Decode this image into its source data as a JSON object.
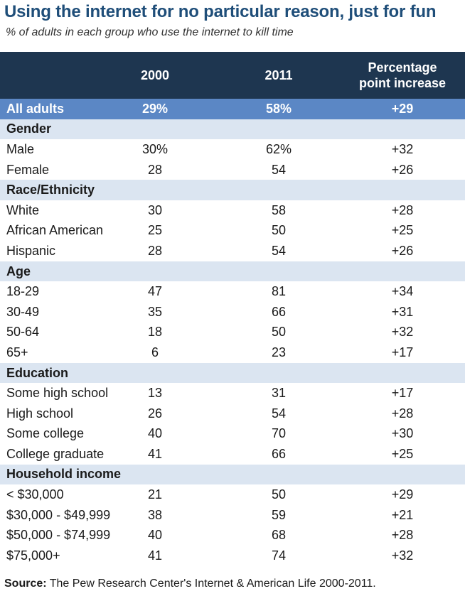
{
  "chart_data": {
    "type": "table",
    "title": "Using the internet for no particular reason, just for fun",
    "subtitle": "% of adults in each group who use the internet to kill time",
    "columns": [
      "",
      "2000",
      "2011",
      "Percentage point increase"
    ],
    "rows": [
      {
        "kind": "all",
        "label": "All adults",
        "v2000": "29%",
        "v2011": "58%",
        "increase": "+29"
      },
      {
        "kind": "group",
        "label": "Gender"
      },
      {
        "kind": "data",
        "label": "Male",
        "v2000": "30%",
        "v2011": "62%",
        "increase": "+32"
      },
      {
        "kind": "data",
        "label": "Female",
        "v2000": "28",
        "v2011": "54",
        "increase": "+26"
      },
      {
        "kind": "group",
        "label": "Race/Ethnicity"
      },
      {
        "kind": "data",
        "label": "White",
        "v2000": "30",
        "v2011": "58",
        "increase": "+28"
      },
      {
        "kind": "data",
        "label": "African American",
        "v2000": "25",
        "v2011": "50",
        "increase": "+25"
      },
      {
        "kind": "data",
        "label": "Hispanic",
        "v2000": "28",
        "v2011": "54",
        "increase": "+26"
      },
      {
        "kind": "group",
        "label": "Age"
      },
      {
        "kind": "data",
        "label": "18-29",
        "v2000": "47",
        "v2011": "81",
        "increase": "+34"
      },
      {
        "kind": "data",
        "label": "30-49",
        "v2000": "35",
        "v2011": "66",
        "increase": "+31"
      },
      {
        "kind": "data",
        "label": "50-64",
        "v2000": "18",
        "v2011": "50",
        "increase": "+32"
      },
      {
        "kind": "data",
        "label": "65+",
        "v2000": "6",
        "v2011": "23",
        "increase": "+17"
      },
      {
        "kind": "group",
        "label": "Education"
      },
      {
        "kind": "data",
        "label": "Some high school",
        "v2000": "13",
        "v2011": "31",
        "increase": "+17"
      },
      {
        "kind": "data",
        "label": "High school",
        "v2000": "26",
        "v2011": "54",
        "increase": "+28"
      },
      {
        "kind": "data",
        "label": "Some college",
        "v2000": "40",
        "v2011": "70",
        "increase": "+30"
      },
      {
        "kind": "data",
        "label": "College graduate",
        "v2000": "41",
        "v2011": "66",
        "increase": "+25"
      },
      {
        "kind": "group",
        "label": "Household income"
      },
      {
        "kind": "data",
        "label": "< $30,000",
        "v2000": "21",
        "v2011": "50",
        "increase": "+29"
      },
      {
        "kind": "data",
        "label": "$30,000 - $49,999",
        "v2000": "38",
        "v2011": "59",
        "increase": "+21"
      },
      {
        "kind": "data",
        "label": "$50,000 - $74,999",
        "v2000": "40",
        "v2011": "68",
        "increase": "+28"
      },
      {
        "kind": "data",
        "label": "$75,000+",
        "v2000": "41",
        "v2011": "74",
        "increase": "+32"
      }
    ]
  },
  "header": {
    "col_2000": "2000",
    "col_2011": "2011",
    "col_increase_line1": "Percentage",
    "col_increase_line2": "point increase"
  },
  "source": {
    "label": "Source:",
    "text": " The Pew Research Center's Internet & American Life 2000-2011."
  },
  "colors": {
    "title": "#1f4e79",
    "header_bg": "#1e3650",
    "all_row_bg": "#5b87c5",
    "group_row_bg": "#dbe5f1"
  }
}
